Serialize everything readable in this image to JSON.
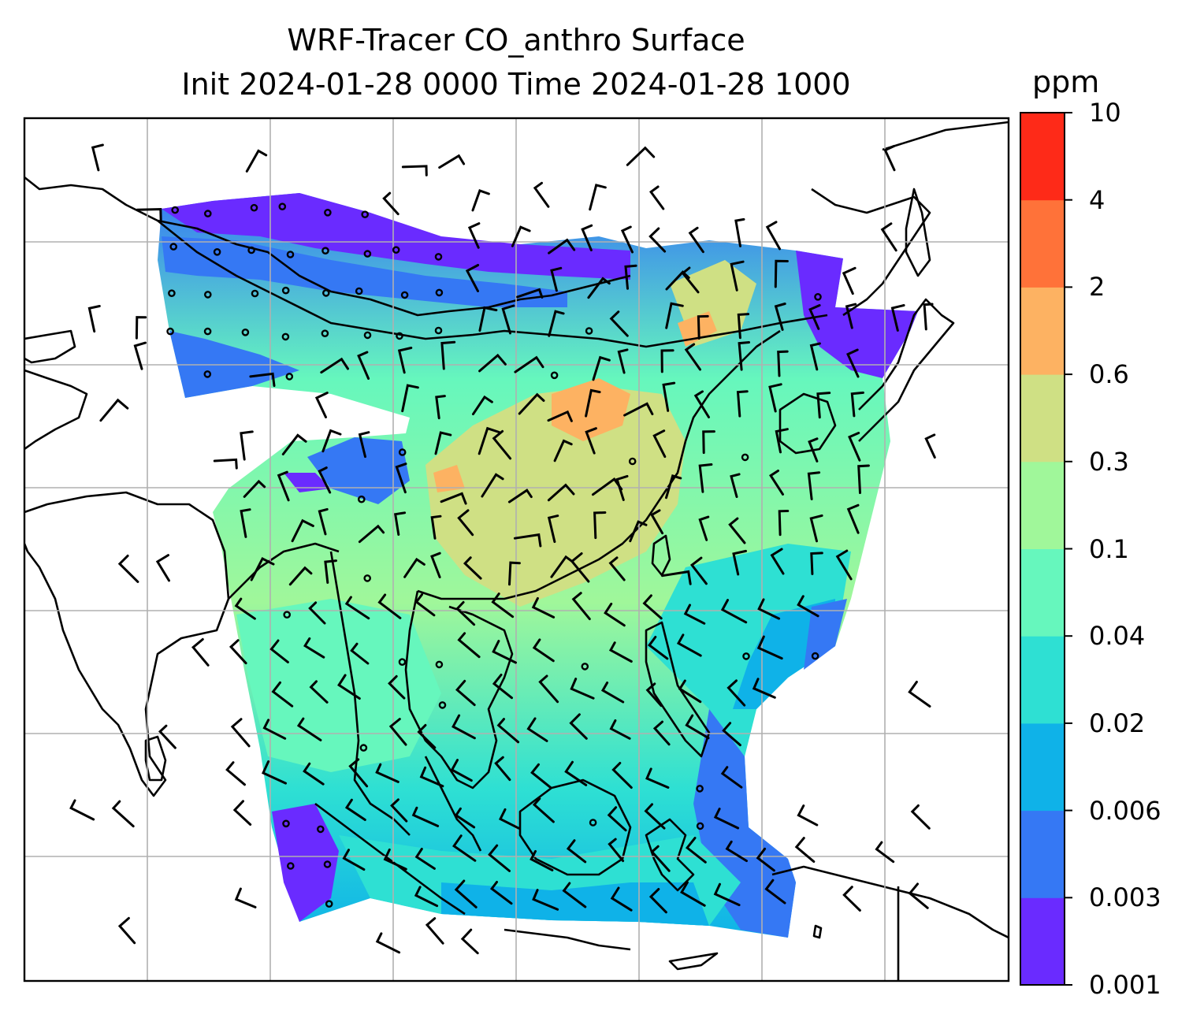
{
  "title": {
    "line1": "WRF-Tracer CO_anthro Surface",
    "line2": "Init 2024-01-28 0000 Time 2024-01-28 1000"
  },
  "colorbar": {
    "unit": "ppm",
    "ticks": [
      "0.001",
      "0.003",
      "0.006",
      "0.02",
      "0.04",
      "0.1",
      "0.3",
      "0.6",
      "2",
      "4",
      "10"
    ],
    "colors": [
      "#6a2bff",
      "#3578f4",
      "#0fb2e8",
      "#2ee0d3",
      "#66f7bd",
      "#a0f79a",
      "#cfe084",
      "#fdb262",
      "#ff7239",
      "#fe2a18"
    ]
  },
  "map": {
    "land_outline_color": "#000000",
    "gridline_color": "#b0b0b0"
  }
}
